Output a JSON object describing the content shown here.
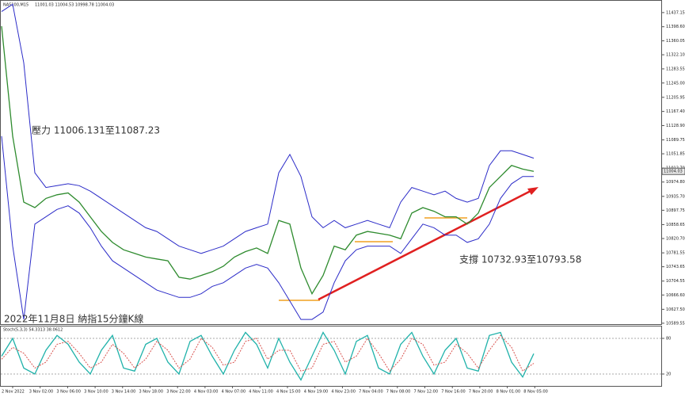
{
  "header": {
    "symbol": "NAS100,M15",
    "ohlc": "11001.03 11004.53 10998.78 11004.03"
  },
  "chart_data": [
    {
      "type": "line",
      "ylim": [
        10585,
        11465
      ],
      "yticks": [
        11437.15,
        {
          "value": 11398.6,
          "label": "11398.60"
        },
        11360.05,
        {
          "value": 11322.1,
          "label": "11322.10"
        },
        11283.55,
        {
          "value": 11245.0,
          "label": "11245.00"
        },
        11205.95,
        {
          "value": 11167.4,
          "label": "11167.40"
        },
        {
          "value": 11128.9,
          "label": "11128.90"
        },
        11089.75,
        11051.85,
        {
          "value": 11012.7,
          "label": "11012.70"
        },
        {
          "value": 10974.8,
          "label": "10974.80"
        },
        {
          "value": 10935.7,
          "label": "10935.70"
        },
        10897.75,
        10858.65,
        {
          "value": 10820.7,
          "label": "10820.70"
        },
        10781.55,
        10743.65,
        10704.55,
        {
          "value": 10666.6,
          "label": "10666.60"
        },
        {
          "value": 10627.5,
          "label": "10627.50"
        },
        10589.55
      ],
      "last_price": 11004.03,
      "annotations": [
        "壓力 11006.131至11087.23",
        "支撐 10732.93至10793.58",
        "2022年11月8日 納指15分鐘K線"
      ],
      "series": [
        {
          "color": "#2e8b2e",
          "values": [
            11400,
            11100,
            10920,
            10905,
            10930,
            10940,
            10945,
            10920,
            10880,
            10840,
            10810,
            10790,
            10780,
            10770,
            10765,
            10760,
            10715,
            10710,
            10720,
            10730,
            10745,
            10770,
            10785,
            10795,
            10780,
            10870,
            10860,
            10740,
            10670,
            10720,
            10800,
            10790,
            10830,
            10840,
            10835,
            10830,
            10820,
            10890,
            10905,
            10895,
            10880,
            10880,
            10860,
            10890,
            10960,
            10990,
            11020,
            11010,
            11004.03
          ]
        },
        {
          "color": "#2b2bc8",
          "values": [
            11440,
            11460,
            11300,
            11000,
            10960,
            10965,
            10970,
            10965,
            10950,
            10930,
            10910,
            10890,
            10870,
            10850,
            10840,
            10820,
            10800,
            10790,
            10780,
            10790,
            10800,
            10820,
            10840,
            10850,
            10860,
            11000,
            11050,
            10990,
            10880,
            10850,
            10870,
            10850,
            10860,
            10870,
            10860,
            10850,
            10920,
            10960,
            10950,
            10940,
            10950,
            10930,
            10920,
            10930,
            11020,
            11060,
            11060,
            11050,
            11040
          ]
        },
        {
          "color": "#2b2bc8",
          "values": [
            11100,
            10800,
            10600,
            10860,
            10880,
            10900,
            10910,
            10890,
            10850,
            10800,
            10760,
            10740,
            10720,
            10700,
            10680,
            10670,
            10660,
            10660,
            10670,
            10690,
            10700,
            10720,
            10740,
            10750,
            10740,
            10700,
            10650,
            10600,
            10600,
            10620,
            10700,
            10760,
            10790,
            10800,
            10800,
            10800,
            10780,
            10820,
            10860,
            10850,
            10830,
            10830,
            10810,
            10820,
            10860,
            10930,
            10970,
            10990,
            10990
          ]
        }
      ]
    },
    {
      "type": "line",
      "title": "Stoch(5,3,3) 54.3313 38.0612",
      "ylim": [
        0,
        100
      ],
      "yticks": [
        80,
        20
      ],
      "series": [
        {
          "color": "#20b2aa",
          "values": [
            50,
            80,
            30,
            20,
            60,
            85,
            70,
            40,
            20,
            60,
            85,
            30,
            25,
            70,
            80,
            40,
            20,
            75,
            85,
            50,
            20,
            60,
            90,
            70,
            30,
            80,
            40,
            10,
            50,
            90,
            60,
            20,
            75,
            85,
            30,
            20,
            70,
            90,
            50,
            20,
            60,
            80,
            30,
            25,
            85,
            90,
            40,
            15,
            54.3313
          ]
        },
        {
          "color": "#d9534f",
          "values": [
            45,
            65,
            55,
            30,
            40,
            70,
            75,
            55,
            30,
            40,
            70,
            55,
            30,
            45,
            75,
            60,
            30,
            45,
            80,
            65,
            35,
            40,
            75,
            80,
            45,
            60,
            60,
            25,
            30,
            70,
            75,
            40,
            50,
            80,
            55,
            25,
            45,
            80,
            70,
            35,
            40,
            70,
            55,
            30,
            60,
            85,
            65,
            25,
            38.0612
          ]
        }
      ]
    }
  ],
  "time_labels": [
    "2 Nov 2022",
    "3 Nov 02:00",
    "3 Nov 06:00",
    "3 Nov 10:00",
    "3 Nov 14:00",
    "3 Nov 18:00",
    "3 Nov 22:00",
    "4 Nov 03:00",
    "4 Nov 07:00",
    "4 Nov 11:00",
    "4 Nov 15:00",
    "4 Nov 19:00",
    "4 Nov 23:00",
    "7 Nov 04:00",
    "7 Nov 08:00",
    "7 Nov 12:00",
    "7 Nov 16:00",
    "7 Nov 20:00",
    "8 Nov 01:00",
    "8 Nov 05:00"
  ]
}
